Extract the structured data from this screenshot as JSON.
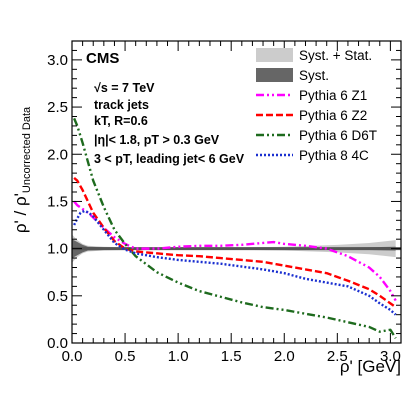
{
  "chart_data": {
    "type": "line",
    "experiment_label": "CMS",
    "annotations": [
      "√s = 7 TeV",
      "track jets",
      "kT, R=0.6",
      "|η|< 1.8, pT > 0.3 GeV",
      "3 < pT, leading jet< 6 GeV"
    ],
    "xlabel": "ρ' [GeV]",
    "ylabel": "ρ' / ρ'Uncorrected Data",
    "xlim": [
      0.0,
      3.1
    ],
    "ylim": [
      0.0,
      3.2
    ],
    "x_ticks": [
      "0.0",
      "0.5",
      "1.0",
      "1.5",
      "2.0",
      "2.5",
      "3.0"
    ],
    "y_ticks": [
      "0.0",
      "0.5",
      "1.0",
      "1.5",
      "2.0",
      "2.5",
      "3.0"
    ],
    "grid": false,
    "legend_position": "top-right",
    "bands": [
      {
        "name": "Syst. + Stat.",
        "color": "#cccccc",
        "x": [
          0.0,
          0.05,
          0.1,
          0.15,
          0.3,
          0.5,
          1.0,
          1.5,
          2.0,
          2.5,
          2.8,
          3.05
        ],
        "half_width": [
          0.15,
          0.09,
          0.05,
          0.03,
          0.02,
          0.015,
          0.01,
          0.01,
          0.02,
          0.04,
          0.06,
          0.09
        ]
      },
      {
        "name": "Syst.",
        "color": "#666666",
        "x": [
          0.0,
          0.05,
          0.1,
          0.15,
          0.3,
          0.5,
          1.0,
          1.5,
          2.0,
          2.5,
          2.8,
          3.05
        ],
        "half_width": [
          0.1,
          0.07,
          0.04,
          0.02,
          0.015,
          0.01,
          0.005,
          0.005,
          0.005,
          0.01,
          0.015,
          0.02
        ]
      }
    ],
    "reference_line": {
      "y": 1.0,
      "color": "#555555"
    },
    "series": [
      {
        "name": "Pythia 6 Z1",
        "color": "#ff00ff",
        "style": "dashdotdot",
        "x": [
          0.02,
          0.05,
          0.1,
          0.15,
          0.2,
          0.3,
          0.4,
          0.5,
          0.6,
          0.8,
          1.0,
          1.2,
          1.4,
          1.6,
          1.8,
          1.9,
          2.0,
          2.2,
          2.4,
          2.6,
          2.8,
          2.9,
          3.0,
          3.05
        ],
        "y": [
          1.5,
          1.46,
          1.42,
          1.38,
          1.33,
          1.22,
          1.12,
          1.05,
          1.0,
          1.0,
          1.02,
          1.03,
          1.03,
          1.04,
          1.06,
          1.07,
          1.05,
          1.03,
          1.0,
          0.92,
          0.8,
          0.7,
          0.55,
          0.45
        ]
      },
      {
        "name": "Pythia 6 Z2",
        "color": "#ff0000",
        "style": "dashed",
        "x": [
          0.02,
          0.05,
          0.1,
          0.15,
          0.2,
          0.3,
          0.4,
          0.5,
          0.6,
          0.8,
          1.0,
          1.2,
          1.4,
          1.6,
          1.8,
          2.0,
          2.2,
          2.4,
          2.6,
          2.8,
          2.9,
          3.0,
          3.05
        ],
        "y": [
          1.75,
          1.72,
          1.62,
          1.5,
          1.38,
          1.22,
          1.08,
          1.0,
          0.97,
          0.95,
          0.93,
          0.92,
          0.9,
          0.88,
          0.86,
          0.82,
          0.78,
          0.74,
          0.66,
          0.57,
          0.5,
          0.42,
          0.38
        ]
      },
      {
        "name": "Pythia 6 D6T",
        "color": "#1e6b1e",
        "style": "dashdotdot",
        "x": [
          0.02,
          0.05,
          0.1,
          0.15,
          0.2,
          0.3,
          0.4,
          0.5,
          0.6,
          0.8,
          1.0,
          1.2,
          1.4,
          1.6,
          1.8,
          2.0,
          2.2,
          2.4,
          2.6,
          2.8,
          2.9,
          3.0,
          3.05
        ],
        "y": [
          2.38,
          2.3,
          2.12,
          1.92,
          1.72,
          1.44,
          1.2,
          1.05,
          0.92,
          0.75,
          0.64,
          0.55,
          0.49,
          0.43,
          0.38,
          0.35,
          0.31,
          0.27,
          0.22,
          0.17,
          0.12,
          0.14,
          0.05
        ]
      },
      {
        "name": "Pythia 8 4C",
        "color": "#1a2fd0",
        "style": "dotted",
        "x": [
          0.02,
          0.05,
          0.08,
          0.12,
          0.16,
          0.2,
          0.3,
          0.4,
          0.5,
          0.6,
          0.8,
          1.0,
          1.2,
          1.4,
          1.6,
          1.8,
          2.0,
          2.2,
          2.4,
          2.6,
          2.8,
          2.9,
          3.0,
          3.05
        ],
        "y": [
          1.25,
          1.32,
          1.38,
          1.4,
          1.38,
          1.34,
          1.2,
          1.06,
          0.99,
          0.95,
          0.91,
          0.88,
          0.86,
          0.84,
          0.81,
          0.78,
          0.74,
          0.68,
          0.64,
          0.6,
          0.5,
          0.42,
          0.35,
          0.3
        ]
      }
    ]
  }
}
